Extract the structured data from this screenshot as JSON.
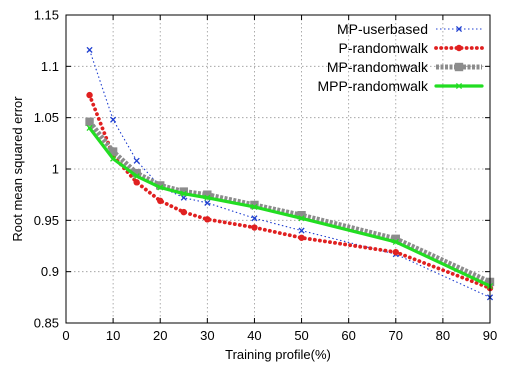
{
  "chart_data": {
    "type": "line",
    "title": "",
    "xlabel": "Training profile(%)",
    "ylabel": "Root mean squared error",
    "xlim": [
      0,
      90
    ],
    "ylim": [
      0.85,
      1.15
    ],
    "xticks": [
      0,
      10,
      20,
      30,
      40,
      50,
      60,
      70,
      80,
      90
    ],
    "yticks": [
      0.85,
      0.9,
      0.95,
      1.0,
      1.05,
      1.1,
      1.15
    ],
    "xtick_labels": [
      "0",
      "10",
      "20",
      "30",
      "40",
      "50",
      "60",
      "70",
      "80",
      "90"
    ],
    "ytick_labels": [
      "0.85",
      "0.9",
      "0.95",
      "1",
      "1.05",
      "1.1",
      "1.15"
    ],
    "grid": true,
    "legend_position": "top-right",
    "x": [
      5,
      10,
      15,
      20,
      25,
      30,
      40,
      50,
      70,
      90
    ],
    "series": [
      {
        "name": "MP-userbased",
        "values": [
          1.116,
          1.048,
          1.008,
          0.983,
          0.972,
          0.967,
          0.952,
          0.94,
          0.917,
          0.875
        ],
        "color": "#1f3fd0",
        "style": "dotted",
        "marker": "x"
      },
      {
        "name": "P-randomwalk",
        "values": [
          1.072,
          1.013,
          0.987,
          0.969,
          0.958,
          0.951,
          0.943,
          0.933,
          0.919,
          0.884
        ],
        "color": "#e02020",
        "style": "dotted-thick",
        "marker": "circle"
      },
      {
        "name": "MP-randomwalk",
        "values": [
          1.046,
          1.017,
          0.996,
          0.984,
          0.978,
          0.975,
          0.965,
          0.955,
          0.932,
          0.89
        ],
        "color": "#8c8c8c",
        "style": "dash-dot-thick",
        "marker": "square"
      },
      {
        "name": "MPP-randomwalk",
        "values": [
          1.04,
          1.01,
          0.993,
          0.982,
          0.976,
          0.972,
          0.963,
          0.952,
          0.929,
          0.886
        ],
        "color": "#22dd22",
        "style": "solid-thick",
        "marker": "x"
      }
    ]
  }
}
